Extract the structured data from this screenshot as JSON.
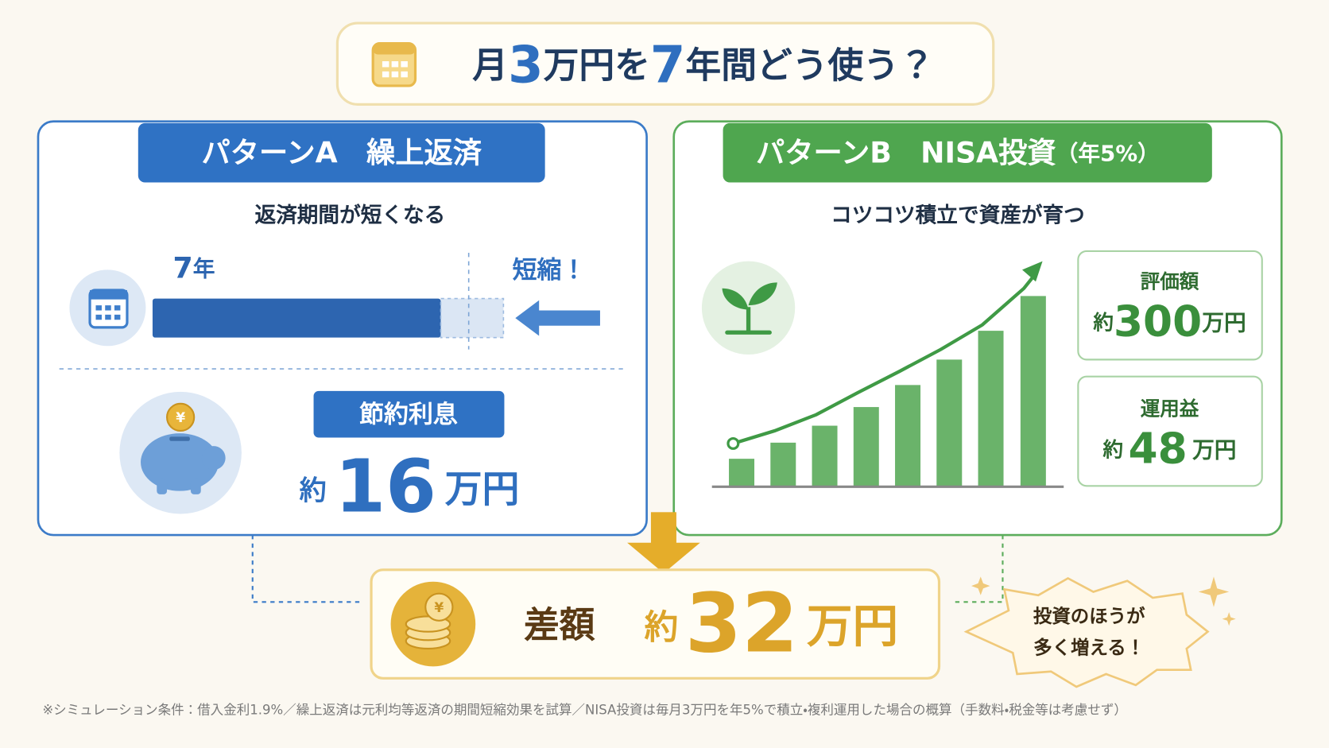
{
  "header": {
    "title": [
      "月",
      "3",
      "万円を",
      "7",
      "年間どう使う？"
    ]
  },
  "pattern_a": {
    "label": "パターンA　繰上返済",
    "subtitle": "返済期間が短くなる",
    "years": [
      "7",
      "年"
    ],
    "shortened": "短縮！",
    "badge": "節約利息",
    "amount_prefix": "約",
    "amount": "16",
    "amount_unit": "万円"
  },
  "pattern_b": {
    "label": "パターンB　NISA投資",
    "label_note": "（年5%）",
    "subtitle": "コツコツ積立で資産が育つ",
    "cards": [
      {
        "label": "評価額",
        "prefix": "約",
        "amount": "300",
        "unit": "万円"
      },
      {
        "label": "運用益",
        "prefix": "約",
        "amount": "48",
        "unit": "万円"
      }
    ]
  },
  "result": {
    "label": "差額",
    "prefix": "約",
    "amount": "32",
    "unit": "万円",
    "bubble": [
      "投資のほうが",
      "多く増える！"
    ]
  },
  "footnote": "※シミュレーション条件：借入金利1.9%／繰上返済は元利均等返済の期間短縮効果を試算／NISA投資は毎月3万円を年5%で積立・複利運用した場合の概算（手数料・税金等は考慮せず）"
}
